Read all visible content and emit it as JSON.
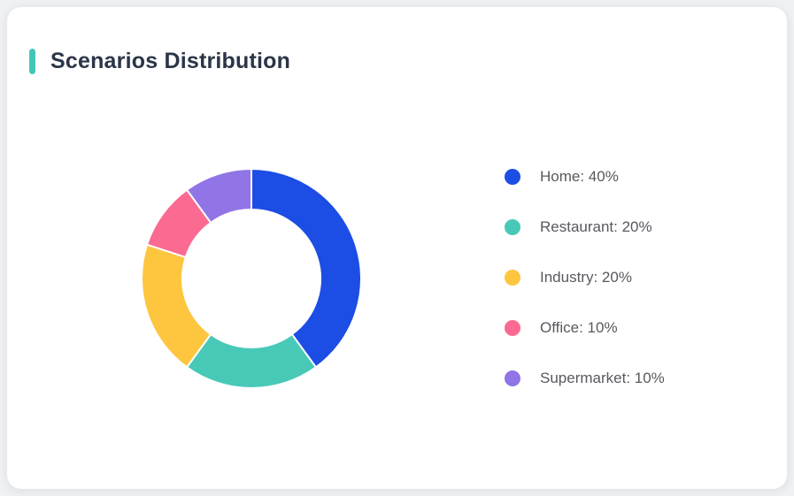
{
  "page": {
    "background_color": "#eff1f3"
  },
  "card": {
    "title": "Scenarios Distribution",
    "accent_color": "#41c7b9",
    "title_color": "#2b3547"
  },
  "chart_data": {
    "type": "pie",
    "subtype": "donut",
    "title": "Scenarios Distribution",
    "start_angle_deg": 0,
    "direction": "clockwise",
    "inner_radius_ratio": 0.62,
    "separator_color": "#ffffff",
    "legend_position": "right",
    "legend_label_format": "{label}: {value}%",
    "segments": [
      {
        "label": "Home",
        "value": 40,
        "unit": "%",
        "color": "#1c4de4"
      },
      {
        "label": "Restaurant",
        "value": 20,
        "unit": "%",
        "color": "#48c9b8"
      },
      {
        "label": "Industry",
        "value": 20,
        "unit": "%",
        "color": "#fec53f"
      },
      {
        "label": "Office",
        "value": 10,
        "unit": "%",
        "color": "#fb6a90"
      },
      {
        "label": "Supermarket",
        "value": 10,
        "unit": "%",
        "color": "#9174e6"
      }
    ]
  }
}
